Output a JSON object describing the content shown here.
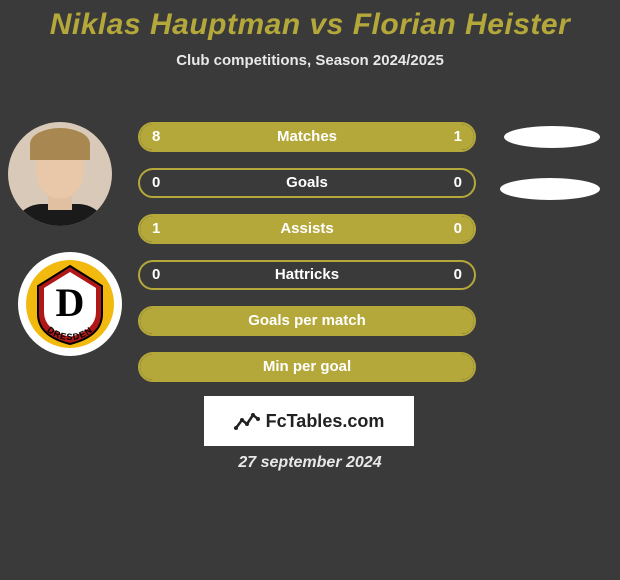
{
  "title_color": "#b5a83a",
  "title": "Niklas Hauptman vs Florian Heister",
  "subtitle": "Club competitions, Season 2024/2025",
  "accent_color": "#b5a83a",
  "border_color": "#b5a83a",
  "stats": [
    {
      "label": "Matches",
      "left_val": "8",
      "right_val": "1",
      "left_pct": 89,
      "right_pct": 11
    },
    {
      "label": "Goals",
      "left_val": "0",
      "right_val": "0",
      "left_pct": 0,
      "right_pct": 0
    },
    {
      "label": "Assists",
      "left_val": "1",
      "right_val": "0",
      "left_pct": 100,
      "right_pct": 0
    },
    {
      "label": "Hattricks",
      "left_val": "0",
      "right_val": "0",
      "left_pct": 0,
      "right_pct": 0
    },
    {
      "label": "Goals per match",
      "left_val": "",
      "right_val": "",
      "left_pct": 100,
      "right_pct": 0,
      "single": true
    },
    {
      "label": "Min per goal",
      "left_val": "",
      "right_val": "",
      "left_pct": 100,
      "right_pct": 0,
      "single": true
    }
  ],
  "club": {
    "name": "Dynamo Dresden",
    "ring_color": "#f2b90f",
    "inner_color": "#b01818",
    "text": "DRESDEN",
    "letter": "D"
  },
  "footer_brand": "FcTables.com",
  "date": "27 september 2024"
}
